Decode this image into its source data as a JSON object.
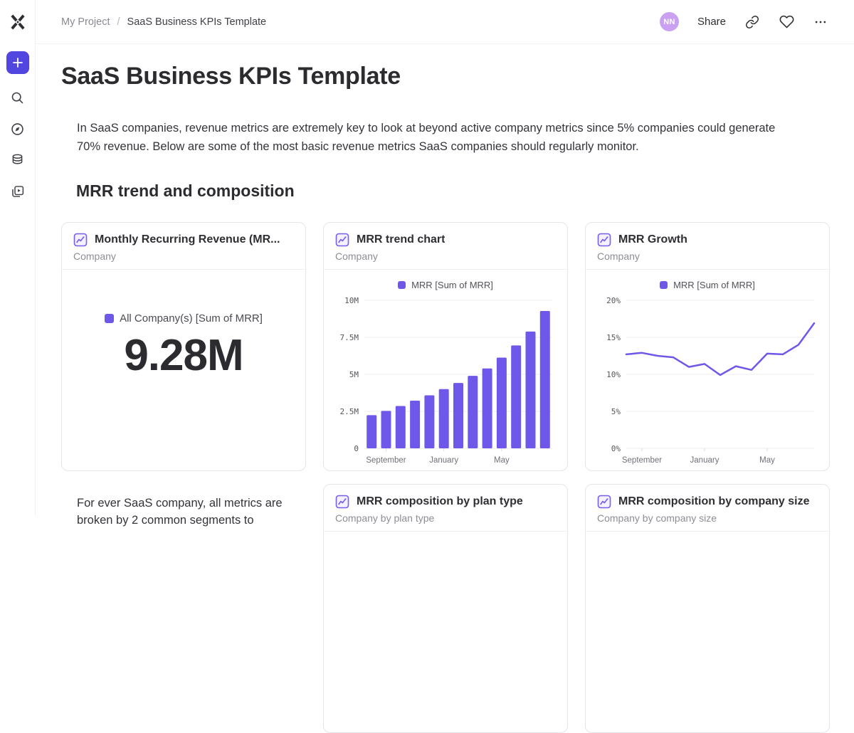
{
  "topbar": {
    "breadcrumb": {
      "project": "My Project",
      "separator": "/",
      "page": "SaaS Business KPIs Template"
    },
    "avatar_initials": "NN",
    "share_label": "Share"
  },
  "page": {
    "title": "SaaS Business KPIs Template",
    "intro": "In SaaS companies, revenue metrics are extremely key to look at beyond active company metrics since 5% companies could generate 70% revenue. Below are some of the most basic revenue metrics SaaS companies should regularly monitor.",
    "section_heading": "MRR trend and composition",
    "footer_text": "For ever SaaS company, all metrics are broken by 2 common segments to"
  },
  "cards": {
    "mrr_number": {
      "title": "Monthly Recurring Revenue (MR...",
      "subtitle": "Company",
      "legend": "All Company(s) [Sum of MRR]",
      "value": "9.28M"
    },
    "mrr_trend": {
      "title": "MRR trend chart",
      "subtitle": "Company",
      "legend": "MRR [Sum of MRR]"
    },
    "mrr_growth": {
      "title": "MRR Growth",
      "subtitle": "Company",
      "legend": "MRR [Sum of MRR]"
    },
    "mrr_plan": {
      "title": "MRR composition by plan type",
      "subtitle": "Company by plan type"
    },
    "mrr_size": {
      "title": "MRR composition by company size",
      "subtitle": "Company by company size"
    }
  },
  "colors": {
    "accent_purple": "#6e58ea",
    "plus_button": "#5246e0",
    "avatar_bg": "#c9a1f0",
    "report_icon_purple": "#7a5af5"
  },
  "chart_data": [
    {
      "type": "number",
      "title": "Monthly Recurring Revenue (MRR)",
      "legend": "All Company(s) [Sum of MRR]",
      "value": 9.28,
      "display_value": "9.28M"
    },
    {
      "type": "bar",
      "title": "MRR trend chart",
      "legend": "MRR [Sum of MRR]",
      "values": [
        2.24,
        2.53,
        2.86,
        3.22,
        3.58,
        4.0,
        4.42,
        4.9,
        5.4,
        6.13,
        6.95,
        7.89,
        9.28
      ],
      "unit": "M",
      "ylim": [
        0,
        10
      ],
      "yticks": [
        0,
        2.5,
        5,
        7.5,
        10
      ],
      "ytick_labels": [
        "0",
        "2.5M",
        "5M",
        "7.5M",
        "10M"
      ],
      "x_tick_labels": [
        "September",
        "January",
        "May"
      ],
      "x_tick_indices": [
        1,
        5,
        9
      ],
      "grid": "horizontal",
      "legend_position": "top-center",
      "color": "#6e58ea"
    },
    {
      "type": "line",
      "title": "MRR Growth",
      "legend": "MRR [Sum of MRR]",
      "values": [
        12.7,
        12.9,
        12.5,
        12.3,
        11.0,
        11.4,
        9.9,
        11.1,
        10.6,
        12.8,
        12.7,
        14.0,
        16.9
      ],
      "unit": "%",
      "ylim": [
        0,
        20
      ],
      "yticks": [
        0,
        5,
        10,
        15,
        20
      ],
      "ytick_labels": [
        "0%",
        "5%",
        "10%",
        "15%",
        "20%"
      ],
      "x_tick_labels": [
        "September",
        "January",
        "May"
      ],
      "x_tick_indices": [
        1,
        5,
        9
      ],
      "grid": "horizontal",
      "legend_position": "top-center",
      "color": "#6e58ea"
    }
  ]
}
